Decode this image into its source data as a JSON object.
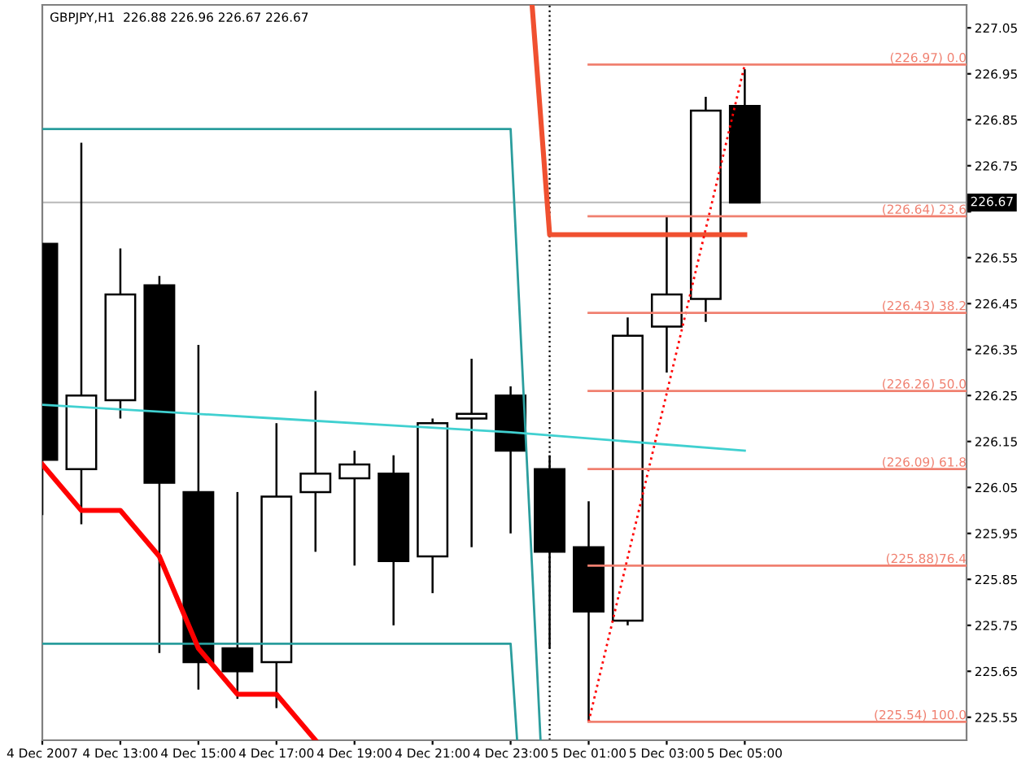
{
  "chart_data": {
    "type": "candlestick",
    "title": "GBPJPY,H1  226.88 226.96 226.67 226.67",
    "x": [
      "2007-12-04T11:00",
      "2007-12-04T12:00",
      "2007-12-04T13:00",
      "2007-12-04T14:00",
      "2007-12-04T15:00",
      "2007-12-04T16:00",
      "2007-12-04T17:00",
      "2007-12-04T18:00",
      "2007-12-04T19:00",
      "2007-12-04T20:00",
      "2007-12-04T21:00",
      "2007-12-04T22:00",
      "2007-12-04T23:00",
      "2007-12-05T00:00",
      "2007-12-05T01:00",
      "2007-12-05T02:00",
      "2007-12-05T03:00",
      "2007-12-05T04:00",
      "2007-12-05T05:00"
    ],
    "ohlc": [
      [
        226.58,
        226.58,
        225.99,
        226.11
      ],
      [
        226.09,
        226.8,
        225.97,
        226.25
      ],
      [
        226.24,
        226.57,
        226.2,
        226.47
      ],
      [
        226.49,
        226.51,
        225.69,
        226.06
      ],
      [
        226.04,
        226.36,
        225.61,
        225.67
      ],
      [
        225.7,
        226.04,
        225.59,
        225.65
      ],
      [
        225.67,
        226.19,
        225.57,
        226.03
      ],
      [
        226.04,
        226.26,
        225.91,
        226.08
      ],
      [
        226.07,
        226.13,
        225.88,
        226.1
      ],
      [
        226.08,
        226.12,
        225.75,
        225.89
      ],
      [
        225.9,
        226.2,
        225.82,
        226.19
      ],
      [
        226.2,
        226.33,
        225.92,
        226.21
      ],
      [
        226.25,
        226.27,
        225.95,
        226.13
      ],
      [
        226.09,
        226.12,
        225.7,
        225.91
      ],
      [
        225.92,
        226.02,
        225.54,
        225.78
      ],
      [
        225.76,
        226.42,
        225.75,
        226.38
      ],
      [
        226.4,
        226.64,
        226.3,
        226.47
      ],
      [
        226.46,
        226.9,
        226.41,
        226.87
      ],
      [
        226.88,
        226.96,
        226.67,
        226.67
      ]
    ],
    "series": [
      {
        "type": "line",
        "color": "#2a9d9d",
        "x": [
          "2007-12-04T11:00",
          "2007-12-04T23:00",
          "2007-12-04T23:46"
        ],
        "values": [
          226.83,
          226.83,
          225.5
        ]
      },
      {
        "type": "line",
        "color": "#2a9d9d",
        "x": [
          "2007-12-04T11:00",
          "2007-12-04T23:00",
          "2007-12-04T23:10"
        ],
        "values": [
          225.71,
          225.71,
          225.5
        ]
      },
      {
        "type": "line",
        "color": "#40d0d0",
        "x": [
          "2007-12-04T11:00",
          "2007-12-04T17:00",
          "2007-12-04T23:00",
          "2007-12-05T05:00"
        ],
        "values": [
          226.23,
          226.2,
          226.17,
          226.13
        ]
      },
      {
        "type": "line",
        "color": "#ff0000",
        "x": [
          "2007-12-04T11:00",
          "2007-12-04T12:00",
          "2007-12-04T13:00",
          "2007-12-04T14:00",
          "2007-12-04T15:00",
          "2007-12-04T16:00",
          "2007-12-04T17:00",
          "2007-12-04T18:00"
        ],
        "values": [
          226.1,
          226.0,
          226.0,
          225.9,
          225.7,
          225.6,
          225.6,
          225.5
        ]
      },
      {
        "type": "line",
        "color": "#f05030",
        "x": [
          "2007-12-04T23:33",
          "2007-12-05T00:00",
          "2007-12-05T05:00"
        ],
        "values": [
          227.1,
          226.6,
          226.6
        ]
      },
      {
        "type": "line",
        "color": "#ff0000",
        "line_style": "dotted",
        "x": [
          "2007-12-05T01:00",
          "2007-12-05T05:00"
        ],
        "values": [
          225.54,
          226.97
        ]
      },
      {
        "type": "line",
        "color": "#f08070",
        "name": "(226.97) 0.0",
        "x": [
          "2007-12-05T01:00",
          "2007-12-05T10:41"
        ],
        "values": [
          226.97,
          226.97
        ]
      },
      {
        "type": "line",
        "color": "#f08070",
        "name": "(226.64) 23.6",
        "x": [
          "2007-12-05T01:00",
          "2007-12-05T10:41"
        ],
        "values": [
          226.64,
          226.64
        ]
      },
      {
        "type": "line",
        "color": "#f08070",
        "name": "(226.43) 38.2",
        "x": [
          "2007-12-05T01:00",
          "2007-12-05T10:41"
        ],
        "values": [
          226.43,
          226.43
        ]
      },
      {
        "type": "line",
        "color": "#f08070",
        "name": "(226.26) 50.0",
        "x": [
          "2007-12-05T01:00",
          "2007-12-05T10:41"
        ],
        "values": [
          226.26,
          226.26
        ]
      },
      {
        "type": "line",
        "color": "#f08070",
        "name": "(226.09) 61.8",
        "x": [
          "2007-12-05T01:00",
          "2007-12-05T10:41"
        ],
        "values": [
          226.09,
          226.09
        ]
      },
      {
        "type": "line",
        "color": "#f08070",
        "name": "(225.88)76.4",
        "x": [
          "2007-12-05T01:00",
          "2007-12-05T10:41"
        ],
        "values": [
          225.88,
          225.88
        ]
      },
      {
        "type": "line",
        "color": "#f08070",
        "name": "(225.54) 100.0",
        "x": [
          "2007-12-05T01:00",
          "2007-12-05T10:41"
        ],
        "values": [
          225.54,
          225.54
        ]
      }
    ],
    "ref_lines": [
      {
        "axis": "y",
        "value": 226.67,
        "label": "226.67",
        "color": "#c0c0c0",
        "line_style": "solid"
      },
      {
        "axis": "x",
        "value": "2007-12-05T00:00",
        "color": "#000000",
        "line_style": "dotted"
      }
    ],
    "xlim": [
      "2007-12-04T11:00",
      "2007-12-05T10:41"
    ],
    "xticks": [
      {
        "value": "2007-12-04T11:00",
        "label": "4 Dec 2007"
      },
      {
        "value": "2007-12-04T13:00",
        "label": "4 Dec 13:00"
      },
      {
        "value": "2007-12-04T15:00",
        "label": "4 Dec 15:00"
      },
      {
        "value": "2007-12-04T17:00",
        "label": "4 Dec 17:00"
      },
      {
        "value": "2007-12-04T19:00",
        "label": "4 Dec 19:00"
      },
      {
        "value": "2007-12-04T21:00",
        "label": "4 Dec 21:00"
      },
      {
        "value": "2007-12-04T23:00",
        "label": "4 Dec 23:00"
      },
      {
        "value": "2007-12-05T01:00",
        "label": "5 Dec 01:00"
      },
      {
        "value": "2007-12-05T03:00",
        "label": "5 Dec 03:00"
      },
      {
        "value": "2007-12-05T05:00",
        "label": "5 Dec 05:00"
      }
    ],
    "ylim": [
      225.5,
      227.1
    ],
    "yticks": [
      225.55,
      225.65,
      225.75,
      225.85,
      225.95,
      226.05,
      226.15,
      226.25,
      226.35,
      226.45,
      226.55,
      {
        "value": 226.65,
        "label": null
      },
      226.75,
      226.85,
      226.95,
      227.05
    ],
    "grid": false,
    "legend": false
  }
}
